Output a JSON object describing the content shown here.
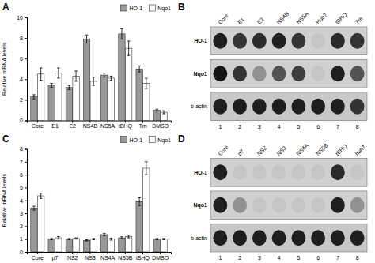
{
  "chart_data": [
    {
      "type": "bar",
      "title": "A",
      "categories": [
        "Core",
        "E1",
        "E2",
        "NS4B",
        "NS5A",
        "tBHQ",
        "Tm",
        "DMSO"
      ],
      "series": [
        {
          "name": "HO-1",
          "color": "#999999",
          "values": [
            2.3,
            3.4,
            3.2,
            7.9,
            4.4,
            8.4,
            5.0,
            1.0
          ],
          "errors": [
            0.2,
            0.2,
            0.2,
            0.4,
            0.2,
            0.5,
            0.3,
            0.1
          ]
        },
        {
          "name": "Nqo1",
          "color": "#ffffff",
          "values": [
            4.5,
            4.6,
            4.3,
            3.8,
            4.1,
            7.0,
            3.6,
            0.8
          ],
          "errors": [
            0.6,
            0.5,
            0.5,
            0.4,
            0.2,
            0.7,
            0.5,
            0.15
          ]
        }
      ],
      "ylabel": "Relative mRNA levels",
      "ylim": [
        0,
        10
      ],
      "yticks": [
        0,
        2,
        4,
        6,
        8,
        10
      ],
      "legend": "upper right"
    },
    {
      "type": "heatmap",
      "title": "B",
      "x": [
        "Core",
        "E1",
        "E2",
        "NS4B",
        "NS5A",
        "Huh7",
        "tBHQ",
        "Tm"
      ],
      "y": [
        "HO-1",
        "Nqo1",
        "b-actin"
      ],
      "values": [
        [
          0.85,
          0.75,
          0.8,
          0.85,
          0.75,
          0.05,
          0.8,
          0.75
        ],
        [
          0.9,
          0.75,
          0.3,
          0.6,
          0.7,
          0.05,
          0.85,
          0.6
        ],
        [
          0.85,
          0.85,
          0.85,
          0.85,
          0.85,
          0.85,
          0.85,
          0.75
        ]
      ],
      "lanes": [
        1,
        2,
        3,
        4,
        5,
        6,
        7,
        8
      ]
    },
    {
      "type": "bar",
      "title": "C",
      "categories": [
        "Core",
        "p7",
        "NS2",
        "NS3",
        "NS4A",
        "NS5B",
        "tBHQ",
        "DMSO"
      ],
      "series": [
        {
          "name": "HO-1",
          "color": "#999999",
          "values": [
            3.4,
            1.0,
            1.0,
            0.9,
            1.35,
            1.1,
            3.9,
            1.0
          ],
          "errors": [
            0.15,
            0.05,
            0.05,
            0.05,
            0.1,
            0.08,
            0.3,
            0.05
          ]
        },
        {
          "name": "Nqo1",
          "color": "#ffffff",
          "values": [
            4.35,
            1.1,
            1.05,
            1.0,
            1.0,
            1.2,
            6.5,
            1.0
          ],
          "errors": [
            0.2,
            0.1,
            0.05,
            0.05,
            0.08,
            0.1,
            0.5,
            0.05
          ]
        }
      ],
      "ylabel": "Relative mRNA levels",
      "ylim": [
        0,
        8
      ],
      "yticks": [
        0,
        1,
        2,
        3,
        4,
        5,
        6,
        7,
        8
      ],
      "legend": "upper right"
    },
    {
      "type": "heatmap",
      "title": "D",
      "x": [
        "Core",
        "p7",
        "NS2",
        "NS3",
        "NS4A",
        "NS5B",
        "tBHQ",
        "huh7"
      ],
      "y": [
        "HO-1",
        "Nqo1",
        "b-actin"
      ],
      "values": [
        [
          0.85,
          0.05,
          0.05,
          0.05,
          0.05,
          0.05,
          0.8,
          0.05
        ],
        [
          0.85,
          0.3,
          0.05,
          0.05,
          0.05,
          0.05,
          0.85,
          0.3
        ],
        [
          0.85,
          0.85,
          0.85,
          0.85,
          0.85,
          0.85,
          0.85,
          0.85
        ]
      ],
      "lanes": [
        1,
        2,
        3,
        4,
        5,
        6,
        7,
        8
      ]
    }
  ]
}
